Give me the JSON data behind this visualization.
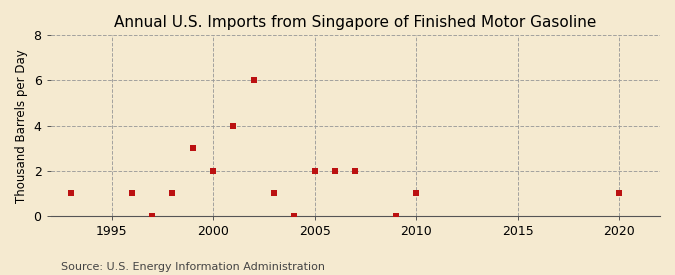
{
  "title": "Annual U.S. Imports from Singapore of Finished Motor Gasoline",
  "ylabel": "Thousand Barrels per Day",
  "source": "Source: U.S. Energy Information Administration",
  "background_color": "#f5ead0",
  "plot_bg_color": "#f5ead0",
  "marker_color": "#bb1111",
  "grid_color": "#999999",
  "years": [
    1993,
    1996,
    1997,
    1998,
    1999,
    2000,
    2001,
    2002,
    2003,
    2004,
    2005,
    2006,
    2007,
    2009,
    2010,
    2020
  ],
  "values": [
    1,
    1,
    0,
    1,
    3,
    2,
    4,
    6,
    1,
    0,
    2,
    2,
    2,
    0,
    1,
    1
  ],
  "xlim": [
    1992,
    2022
  ],
  "ylim": [
    0,
    8
  ],
  "xticks": [
    1995,
    2000,
    2005,
    2010,
    2015,
    2020
  ],
  "yticks": [
    0,
    2,
    4,
    6,
    8
  ],
  "title_fontsize": 11,
  "tick_fontsize": 9,
  "ylabel_fontsize": 8.5,
  "source_fontsize": 8
}
